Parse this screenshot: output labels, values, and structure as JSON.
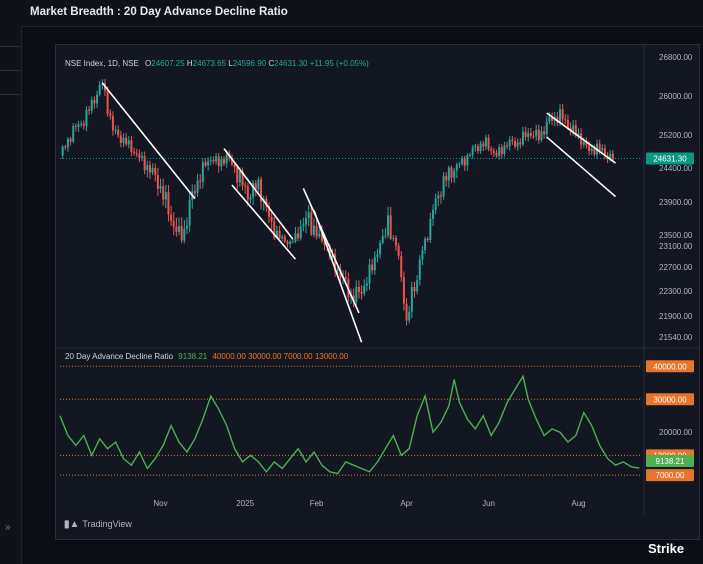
{
  "app": {
    "title": "Market Breadth : 20 Day Advance Decline Ratio",
    "expand_glyph": "»",
    "tradingview_label": "TradingView",
    "brand_label": "Strike"
  },
  "legend": {
    "symbol": "NSE Index, 1D, NSE",
    "open_label": "O",
    "open": "24607.25",
    "high_label": "H",
    "high": "24673.65",
    "low_label": "L",
    "low": "24596.90",
    "close_label": "C",
    "close": "24631.30",
    "change": "+11.95 (+0.05%)",
    "ind_name": "20 Day Advance Decline Ratio",
    "ind_value": "9138.21",
    "level1": "40000.00",
    "level2": "30000.00",
    "level3": "7000.00",
    "level4": "13000.00"
  },
  "colors": {
    "up": "#26a69a",
    "down": "#ef5350",
    "line": "#4caf50",
    "level": "#e8742c",
    "trend": "#ffffff",
    "accent": "#089981"
  },
  "chart_data": [
    {
      "type": "candlestick",
      "series_name": "NSE Index, 1D, NSE",
      "y_ticks": [
        26800,
        26000,
        25200,
        24400,
        23900,
        23500,
        23100,
        22700,
        22300,
        21900,
        21540
      ],
      "last_price": "24631.30",
      "x_ticks": [
        "Nov",
        "2025",
        "Feb",
        "Apr",
        "Jun",
        "Aug"
      ],
      "close_path": [
        [
          0,
          24700
        ],
        [
          5,
          25300
        ],
        [
          9,
          25500
        ],
        [
          13,
          25950
        ],
        [
          16,
          26270
        ],
        [
          20,
          25300
        ],
        [
          26,
          24950
        ],
        [
          32,
          24500
        ],
        [
          37,
          24200
        ],
        [
          42,
          23700
        ],
        [
          46,
          23400
        ],
        [
          50,
          24000
        ],
        [
          54,
          24400
        ],
        [
          57,
          24650
        ],
        [
          60,
          24500
        ],
        [
          63,
          24700
        ],
        [
          66,
          24400
        ],
        [
          71,
          24000
        ],
        [
          75,
          24150
        ],
        [
          79,
          23700
        ],
        [
          83,
          23400
        ],
        [
          87,
          23200
        ],
        [
          91,
          23600
        ],
        [
          94,
          23700
        ],
        [
          97,
          23500
        ],
        [
          100,
          23200
        ],
        [
          103,
          22800
        ],
        [
          107,
          22500
        ],
        [
          110,
          22200
        ],
        [
          114,
          22300
        ],
        [
          118,
          22700
        ],
        [
          121,
          23200
        ],
        [
          124,
          23700
        ],
        [
          126,
          23300
        ],
        [
          128,
          22900
        ],
        [
          130,
          22200
        ],
        [
          131,
          21700
        ],
        [
          133,
          22300
        ],
        [
          135,
          22500
        ],
        [
          138,
          23300
        ],
        [
          141,
          23800
        ],
        [
          145,
          24200
        ],
        [
          149,
          24400
        ],
        [
          153,
          24600
        ],
        [
          157,
          24900
        ],
        [
          161,
          25000
        ],
        [
          165,
          24700
        ],
        [
          169,
          25000
        ],
        [
          173,
          25000
        ],
        [
          177,
          25250
        ],
        [
          181,
          25150
        ],
        [
          185,
          25500
        ],
        [
          189,
          25600
        ],
        [
          193,
          25350
        ],
        [
          197,
          25100
        ],
        [
          200,
          24800
        ],
        [
          203,
          24900
        ],
        [
          206,
          24750
        ],
        [
          209,
          24631
        ]
      ],
      "trend_channels": [
        [
          [
            16,
            26270
          ],
          [
            51,
            23950
          ]
        ],
        [
          [
            62,
            24870
          ],
          [
            88,
            23350
          ]
        ],
        [
          [
            65,
            24150
          ],
          [
            89,
            22850
          ]
        ],
        [
          [
            92,
            24100
          ],
          [
            113,
            21950
          ]
        ],
        [
          [
            96,
            23800
          ],
          [
            114,
            21450
          ]
        ],
        [
          [
            184,
            25650
          ],
          [
            210,
            24520
          ]
        ],
        [
          [
            184,
            25150
          ],
          [
            210,
            23980
          ]
        ]
      ]
    },
    {
      "type": "line",
      "series_name": "20 Day Advance Decline Ratio",
      "y_ticks": [
        40000,
        30000,
        20000,
        13000,
        7000
      ],
      "last_value": "9138.21",
      "levels": [
        40000,
        30000,
        13000,
        7000
      ],
      "values": [
        [
          0,
          25000
        ],
        [
          3,
          19000
        ],
        [
          6,
          16000
        ],
        [
          9,
          19000
        ],
        [
          12,
          13000
        ],
        [
          15,
          18000
        ],
        [
          18,
          15000
        ],
        [
          21,
          17000
        ],
        [
          24,
          12000
        ],
        [
          27,
          10000
        ],
        [
          30,
          14000
        ],
        [
          33,
          9000
        ],
        [
          36,
          12000
        ],
        [
          39,
          16000
        ],
        [
          42,
          22000
        ],
        [
          45,
          17000
        ],
        [
          48,
          14000
        ],
        [
          51,
          18000
        ],
        [
          54,
          24000
        ],
        [
          57,
          31000
        ],
        [
          60,
          27000
        ],
        [
          63,
          22000
        ],
        [
          66,
          15000
        ],
        [
          69,
          11000
        ],
        [
          72,
          13000
        ],
        [
          75,
          11000
        ],
        [
          78,
          8000
        ],
        [
          81,
          11000
        ],
        [
          84,
          9000
        ],
        [
          87,
          12000
        ],
        [
          90,
          15000
        ],
        [
          93,
          11000
        ],
        [
          96,
          14000
        ],
        [
          99,
          10000
        ],
        [
          102,
          8000
        ],
        [
          105,
          7500
        ],
        [
          108,
          11000
        ],
        [
          111,
          10000
        ],
        [
          114,
          9000
        ],
        [
          117,
          8000
        ],
        [
          120,
          11000
        ],
        [
          123,
          15000
        ],
        [
          126,
          19000
        ],
        [
          129,
          13000
        ],
        [
          132,
          15000
        ],
        [
          135,
          25000
        ],
        [
          138,
          31000
        ],
        [
          141,
          20000
        ],
        [
          144,
          23000
        ],
        [
          147,
          28000
        ],
        [
          149,
          36000
        ],
        [
          151,
          29000
        ],
        [
          154,
          24000
        ],
        [
          157,
          21000
        ],
        [
          160,
          25000
        ],
        [
          163,
          19000
        ],
        [
          166,
          23000
        ],
        [
          169,
          29000
        ],
        [
          172,
          33000
        ],
        [
          175,
          37000
        ],
        [
          177,
          30000
        ],
        [
          180,
          24000
        ],
        [
          183,
          19000
        ],
        [
          186,
          21000
        ],
        [
          189,
          20000
        ],
        [
          192,
          17000
        ],
        [
          195,
          19000
        ],
        [
          198,
          26000
        ],
        [
          201,
          22000
        ],
        [
          204,
          16000
        ],
        [
          207,
          12000
        ],
        [
          210,
          10000
        ],
        [
          213,
          11000
        ],
        [
          216,
          9500
        ],
        [
          219,
          9138
        ]
      ]
    }
  ]
}
